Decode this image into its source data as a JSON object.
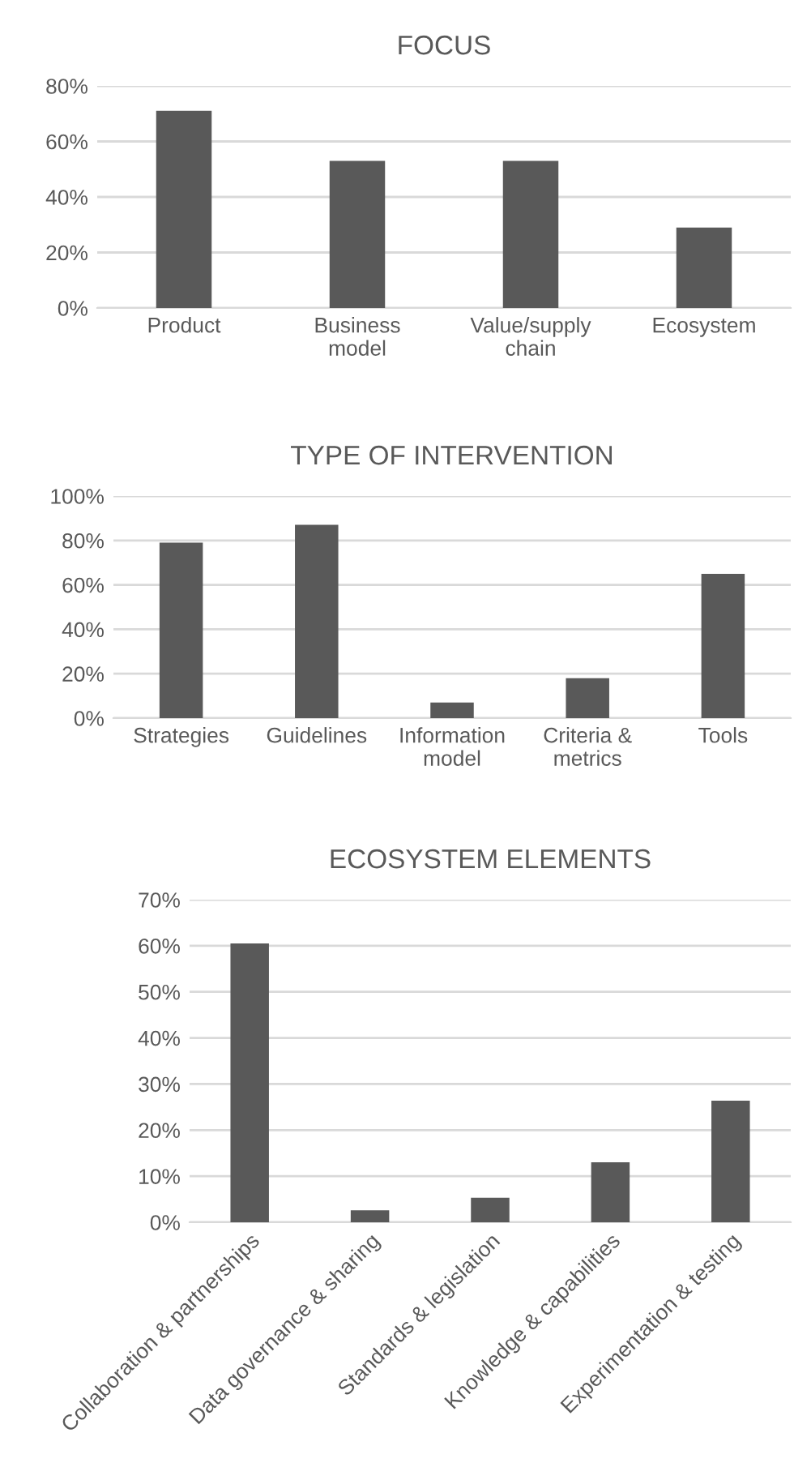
{
  "chart_data": [
    {
      "type": "bar",
      "title": "FOCUS",
      "categories": [
        "Product",
        "Business\nmodel",
        "Value/supply\nchain",
        "Ecosystem"
      ],
      "values": [
        71,
        53,
        53,
        29
      ],
      "color": "#595959",
      "ylim": [
        0,
        80
      ],
      "yticks": [
        {
          "value": 0,
          "label": "0%"
        },
        {
          "value": 20,
          "label": "20%"
        },
        {
          "value": 40,
          "label": "40%"
        },
        {
          "value": 60,
          "label": "60%"
        },
        {
          "value": 80,
          "label": "80%"
        }
      ],
      "grid": "y",
      "legend": false
    },
    {
      "type": "bar",
      "title": "TYPE OF INTERVENTION",
      "categories": [
        "Strategies",
        "Guidelines",
        "Information\nmodel",
        "Criteria &\nmetrics",
        "Tools"
      ],
      "values": [
        79,
        87,
        7,
        18,
        65
      ],
      "color": "#595959",
      "ylim": [
        0,
        100
      ],
      "yticks": [
        {
          "value": 0,
          "label": "0%"
        },
        {
          "value": 20,
          "label": "20%"
        },
        {
          "value": 40,
          "label": "40%"
        },
        {
          "value": 60,
          "label": "60%"
        },
        {
          "value": 80,
          "label": "80%"
        },
        {
          "value": 100,
          "label": "100%"
        }
      ],
      "grid": "y",
      "legend": false
    },
    {
      "type": "bar",
      "title": "ECOSYSTEM ELEMENTS",
      "categories": [
        "Collaboration & partnerships",
        "Data governance & sharing",
        "Standards & legislation",
        "Knowledge & capabilities",
        "Experimentation & testing"
      ],
      "values": [
        60.5,
        2.6,
        5.3,
        13,
        26.4
      ],
      "color": "#595959",
      "ylim": [
        0,
        70
      ],
      "yticks": [
        {
          "value": 0,
          "label": "0%"
        },
        {
          "value": 10,
          "label": "10%"
        },
        {
          "value": 20,
          "label": "20%"
        },
        {
          "value": 30,
          "label": "30%"
        },
        {
          "value": 40,
          "label": "40%"
        },
        {
          "value": 50,
          "label": "50%"
        },
        {
          "value": 60,
          "label": "60%"
        },
        {
          "value": 70,
          "label": "70%"
        }
      ],
      "grid": "y",
      "legend": false
    }
  ]
}
